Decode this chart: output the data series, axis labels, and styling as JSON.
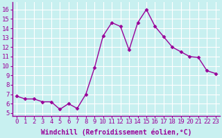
{
  "x": [
    0,
    1,
    2,
    3,
    4,
    5,
    6,
    7,
    8,
    9,
    10,
    11,
    12,
    13,
    14,
    15,
    16,
    17,
    18,
    19,
    20,
    21,
    22,
    23
  ],
  "y": [
    6.8,
    6.5,
    6.5,
    6.2,
    6.2,
    5.4,
    6.0,
    5.5,
    7.0,
    9.8,
    13.2,
    14.6,
    14.2,
    11.7,
    14.6,
    16.0,
    14.2,
    13.1,
    12.0,
    11.5,
    11.0,
    10.9,
    9.5,
    9.2
  ],
  "color": "#990099",
  "bg_color": "#c8f0f0",
  "grid_color": "#aadddd",
  "xlabel": "Windchill (Refroidissement éolien,°C)",
  "ylabel_ticks": [
    5,
    6,
    7,
    8,
    9,
    10,
    11,
    12,
    13,
    14,
    15,
    16
  ],
  "xlim": [
    -0.5,
    23.5
  ],
  "ylim": [
    4.7,
    16.8
  ],
  "xticks": [
    0,
    1,
    2,
    3,
    4,
    5,
    6,
    7,
    8,
    9,
    10,
    11,
    12,
    13,
    14,
    15,
    16,
    17,
    18,
    19,
    20,
    21,
    22,
    23
  ],
  "marker": "D",
  "marker_size": 2.5,
  "line_width": 1.0,
  "xlabel_fontsize": 7,
  "tick_fontsize": 6.5,
  "xlabel_color": "#990099",
  "tick_color": "#990099"
}
